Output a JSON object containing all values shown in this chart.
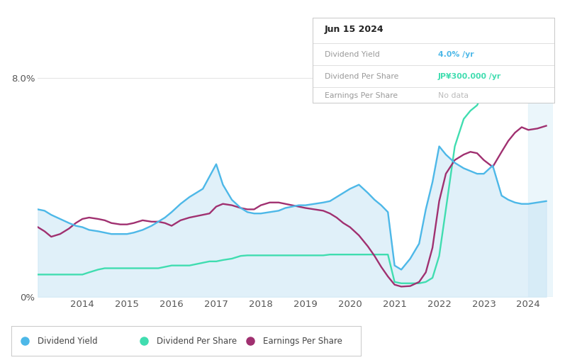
{
  "tooltip_date": "Jun 15 2024",
  "tooltip_dy": "4.0%",
  "tooltip_dps": "JP¥300.000",
  "tooltip_eps": "No data",
  "color_dy": "#4db8e8",
  "color_dps": "#40ddb0",
  "color_eps": "#a03070",
  "color_fill_dy": "#c8e4f5",
  "color_past_bg": "#d4edf8",
  "bg_color": "#ffffff",
  "grid_color": "#e5e5e5",
  "past_start": 2024.0,
  "x_ticks": [
    2014,
    2015,
    2016,
    2017,
    2018,
    2019,
    2020,
    2021,
    2022,
    2023,
    2024
  ],
  "ytick_vals": [
    0.0,
    8.0
  ],
  "ytick_labels": [
    "0%",
    "8.0%"
  ],
  "ylim": [
    0,
    9.2
  ],
  "xmin": 2013.0,
  "xmax": 2024.55,
  "years": [
    2013.0,
    2013.15,
    2013.3,
    2013.5,
    2013.7,
    2013.85,
    2014.0,
    2014.15,
    2014.35,
    2014.5,
    2014.65,
    2014.85,
    2015.0,
    2015.15,
    2015.35,
    2015.55,
    2015.7,
    2015.85,
    2016.0,
    2016.2,
    2016.4,
    2016.55,
    2016.7,
    2016.85,
    2017.0,
    2017.15,
    2017.35,
    2017.55,
    2017.7,
    2017.85,
    2018.0,
    2018.2,
    2018.4,
    2018.55,
    2018.7,
    2018.85,
    2019.0,
    2019.2,
    2019.4,
    2019.55,
    2019.7,
    2019.85,
    2020.0,
    2020.2,
    2020.4,
    2020.55,
    2020.7,
    2020.85,
    2021.0,
    2021.15,
    2021.35,
    2021.55,
    2021.7,
    2021.85,
    2022.0,
    2022.15,
    2022.35,
    2022.55,
    2022.7,
    2022.85,
    2023.0,
    2023.2,
    2023.4,
    2023.55,
    2023.7,
    2023.85,
    2024.0,
    2024.2,
    2024.4
  ],
  "div_yield": [
    3.2,
    3.15,
    3.0,
    2.85,
    2.7,
    2.6,
    2.55,
    2.45,
    2.4,
    2.35,
    2.3,
    2.3,
    2.3,
    2.35,
    2.45,
    2.6,
    2.75,
    2.9,
    3.1,
    3.4,
    3.65,
    3.8,
    3.95,
    4.4,
    4.85,
    4.1,
    3.55,
    3.25,
    3.1,
    3.05,
    3.05,
    3.1,
    3.15,
    3.25,
    3.3,
    3.35,
    3.35,
    3.4,
    3.45,
    3.5,
    3.65,
    3.8,
    3.95,
    4.1,
    3.8,
    3.55,
    3.35,
    3.1,
    1.15,
    1.0,
    1.4,
    1.95,
    3.2,
    4.2,
    5.5,
    5.2,
    4.9,
    4.7,
    4.6,
    4.5,
    4.5,
    4.8,
    3.7,
    3.55,
    3.45,
    3.4,
    3.4,
    3.45,
    3.5
  ],
  "div_per_share": [
    0.82,
    0.82,
    0.82,
    0.82,
    0.82,
    0.82,
    0.82,
    0.9,
    1.0,
    1.05,
    1.05,
    1.05,
    1.05,
    1.05,
    1.05,
    1.05,
    1.05,
    1.1,
    1.15,
    1.15,
    1.15,
    1.2,
    1.25,
    1.3,
    1.3,
    1.35,
    1.4,
    1.5,
    1.52,
    1.52,
    1.52,
    1.52,
    1.52,
    1.52,
    1.52,
    1.52,
    1.52,
    1.52,
    1.52,
    1.55,
    1.55,
    1.55,
    1.55,
    1.55,
    1.55,
    1.55,
    1.55,
    1.55,
    0.55,
    0.5,
    0.5,
    0.5,
    0.55,
    0.7,
    1.5,
    3.2,
    5.5,
    6.5,
    6.8,
    7.0,
    7.5,
    7.8,
    8.0,
    7.9,
    7.7,
    7.6,
    7.6,
    7.8,
    8.05
  ],
  "eps": [
    2.55,
    2.4,
    2.2,
    2.3,
    2.5,
    2.7,
    2.85,
    2.9,
    2.85,
    2.8,
    2.7,
    2.65,
    2.65,
    2.7,
    2.8,
    2.75,
    2.75,
    2.7,
    2.6,
    2.8,
    2.9,
    2.95,
    3.0,
    3.05,
    3.3,
    3.4,
    3.35,
    3.25,
    3.2,
    3.2,
    3.35,
    3.45,
    3.45,
    3.4,
    3.35,
    3.3,
    3.25,
    3.2,
    3.15,
    3.05,
    2.9,
    2.7,
    2.55,
    2.25,
    1.85,
    1.5,
    1.1,
    0.75,
    0.45,
    0.38,
    0.4,
    0.55,
    0.9,
    1.8,
    3.5,
    4.5,
    5.0,
    5.2,
    5.3,
    5.25,
    5.0,
    4.75,
    5.3,
    5.7,
    6.0,
    6.2,
    6.1,
    6.15,
    6.25
  ]
}
